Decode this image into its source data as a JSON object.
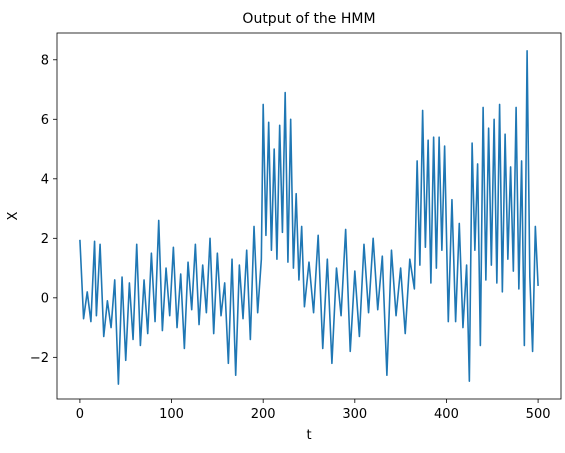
{
  "chart_data": {
    "type": "line",
    "title": "Output of the HMM",
    "xlabel": "t",
    "ylabel": "X",
    "xlim": [
      -25,
      525
    ],
    "ylim": [
      -3.4,
      8.9
    ],
    "xticks": [
      0,
      100,
      200,
      300,
      400,
      500
    ],
    "yticks": [
      -2,
      0,
      2,
      4,
      6,
      8
    ],
    "ytick_labels": [
      "−2",
      "0",
      "2",
      "4",
      "6",
      "8"
    ],
    "grid": false,
    "legend": "none",
    "line_color": "#1f77b4",
    "series": [
      {
        "x": [
          0,
          4,
          8,
          12,
          16,
          18,
          22,
          26,
          30,
          34,
          38,
          42,
          46,
          50,
          54,
          58,
          62,
          66,
          70,
          74,
          78,
          82,
          86,
          90,
          94,
          98,
          102,
          106,
          110,
          114,
          118,
          122,
          126,
          130,
          134,
          138,
          142,
          146,
          150,
          154,
          158,
          162,
          166,
          170,
          174,
          178,
          182,
          186,
          190,
          194,
          198,
          200,
          203,
          206,
          209,
          212,
          215,
          218,
          221,
          224,
          227,
          230,
          233,
          236,
          239,
          242,
          245,
          250,
          255,
          260,
          265,
          270,
          275,
          280,
          285,
          290,
          295,
          300,
          305,
          310,
          315,
          320,
          325,
          330,
          335,
          340,
          345,
          350,
          355,
          360,
          365,
          368,
          371,
          374,
          377,
          380,
          383,
          386,
          389,
          392,
          395,
          398,
          402,
          406,
          410,
          414,
          418,
          422,
          425,
          428,
          431,
          434,
          437,
          440,
          443,
          446,
          449,
          452,
          455,
          458,
          461,
          464,
          467,
          470,
          473,
          476,
          479,
          482,
          485,
          488,
          491,
          494,
          497,
          500
        ],
        "y": [
          1.95,
          -0.7,
          0.2,
          -0.8,
          1.9,
          -0.6,
          1.8,
          -1.3,
          -0.1,
          -1.0,
          0.6,
          -2.9,
          0.7,
          -2.1,
          0.5,
          -1.4,
          1.8,
          -1.6,
          0.6,
          -1.2,
          1.5,
          -0.8,
          2.6,
          -1.1,
          1.0,
          -0.6,
          1.7,
          -1.0,
          0.8,
          -1.7,
          1.2,
          -0.4,
          1.8,
          -0.9,
          1.1,
          -0.5,
          2.0,
          -1.2,
          1.5,
          -0.6,
          0.5,
          -2.2,
          1.3,
          -2.6,
          1.1,
          -0.7,
          1.6,
          -1.4,
          2.4,
          -0.5,
          1.3,
          6.5,
          2.1,
          5.9,
          1.6,
          5.0,
          1.3,
          5.8,
          2.2,
          6.9,
          1.2,
          6.0,
          1.0,
          3.5,
          0.6,
          2.4,
          -0.3,
          1.2,
          -0.5,
          2.1,
          -1.7,
          1.3,
          -2.2,
          1.0,
          -0.6,
          2.3,
          -1.8,
          0.9,
          -1.3,
          1.8,
          -0.5,
          2.0,
          -0.4,
          1.4,
          -2.6,
          1.6,
          -0.6,
          1.0,
          -1.2,
          1.3,
          0.3,
          4.6,
          1.1,
          6.3,
          1.7,
          5.3,
          0.5,
          5.4,
          1.0,
          5.4,
          1.6,
          5.1,
          -0.8,
          3.3,
          -0.8,
          2.5,
          -1.0,
          1.1,
          -2.8,
          5.2,
          1.6,
          4.5,
          -1.6,
          6.4,
          0.6,
          5.7,
          1.1,
          6.0,
          0.5,
          6.5,
          0.2,
          5.5,
          1.3,
          4.4,
          0.9,
          6.4,
          0.3,
          4.6,
          -1.6,
          8.3,
          0.7,
          -1.8,
          2.4,
          0.4
        ]
      }
    ]
  }
}
